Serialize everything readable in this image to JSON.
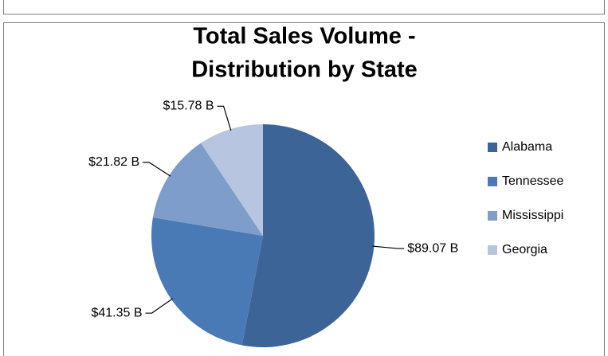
{
  "chart_data": {
    "type": "pie",
    "title": [
      "Total Sales Volume -",
      "Distribution by State"
    ],
    "categories": [
      "Alabama",
      "Tennessee",
      "Mississippi",
      "Georgia"
    ],
    "values": [
      89.07,
      41.35,
      21.82,
      15.78
    ],
    "value_labels": [
      "$89.07 B",
      "$41.35 B",
      "$21.82 B",
      "$15.78 B"
    ],
    "colors": [
      "#3d6496",
      "#4a7ab5",
      "#7f9dcb",
      "#b7c5e0"
    ],
    "legend": "right"
  }
}
